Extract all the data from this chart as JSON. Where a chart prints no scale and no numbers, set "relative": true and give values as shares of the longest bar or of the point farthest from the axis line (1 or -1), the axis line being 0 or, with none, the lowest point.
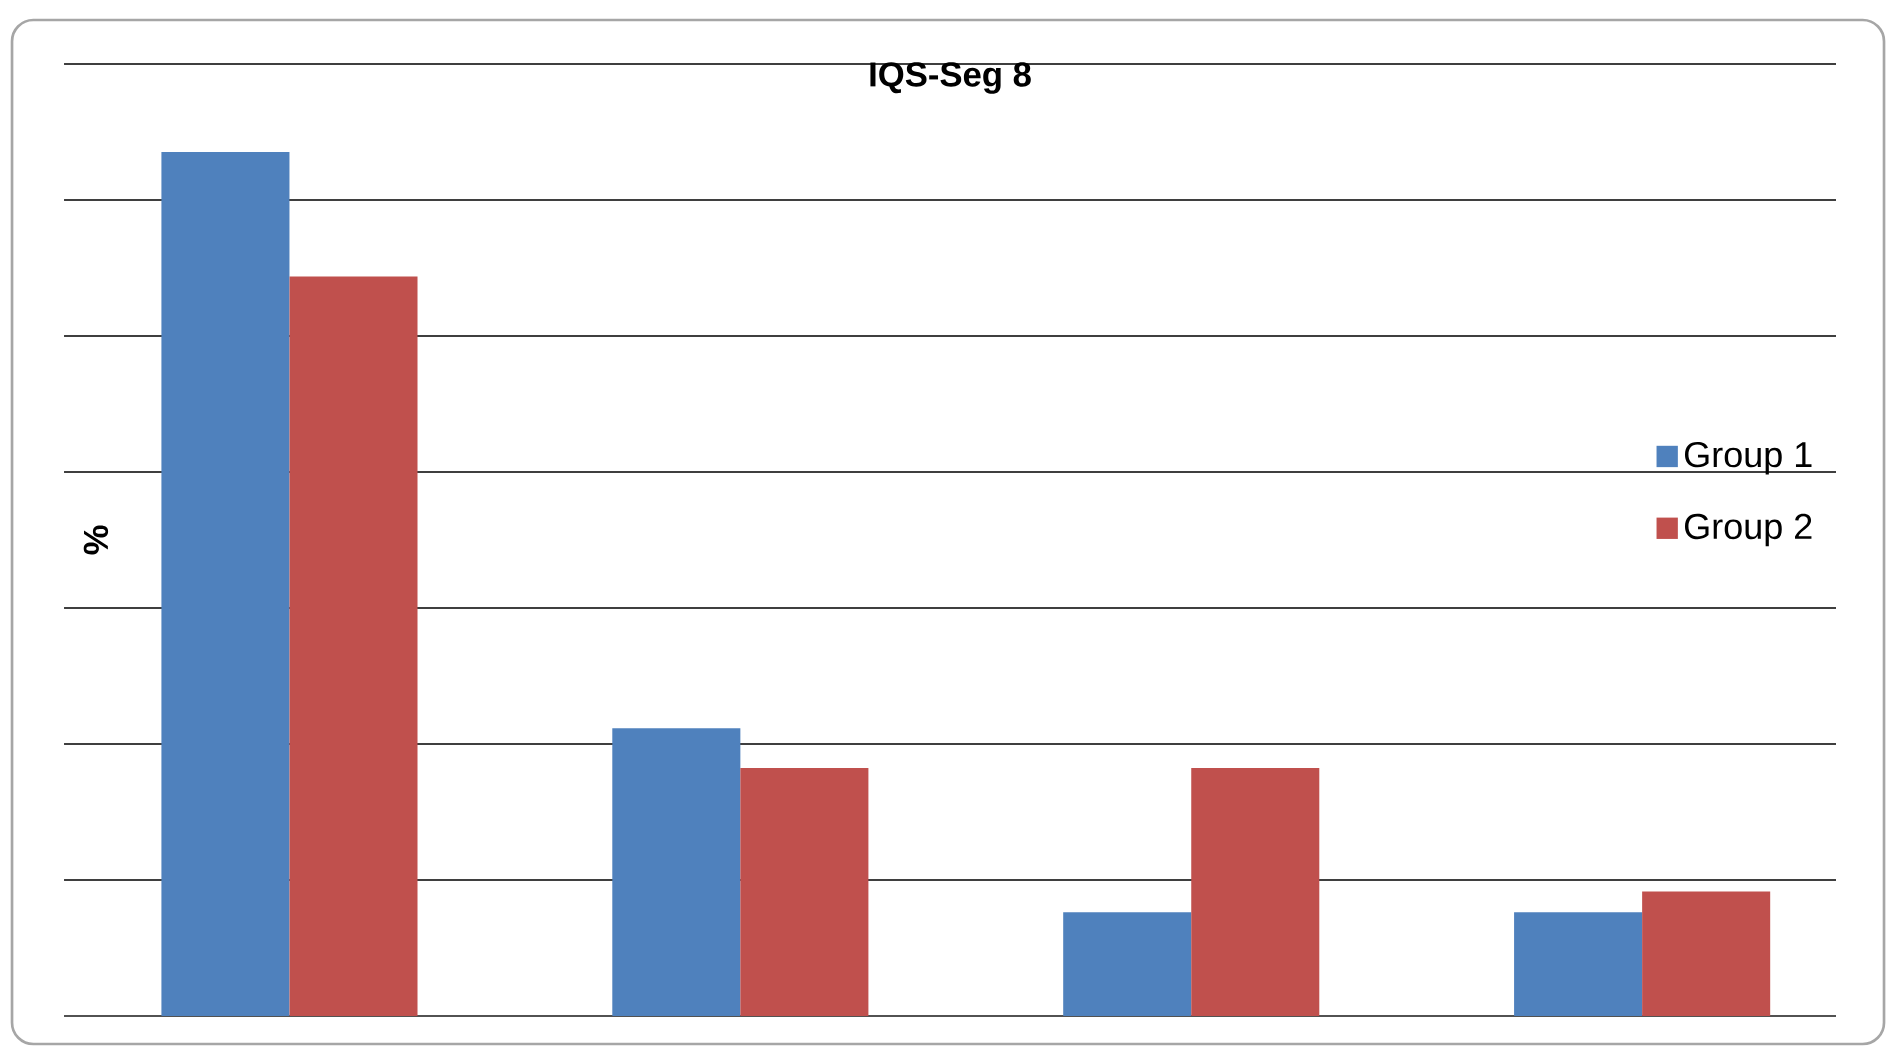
{
  "chart_data": {
    "type": "bar",
    "title": "IQS-Seg 8",
    "ylabel": "%",
    "relative": true,
    "categories": [
      null,
      null,
      null,
      null
    ],
    "series": [
      {
        "name": "Group 1",
        "color": "#4f81bd",
        "values": [
          1,
          0.333,
          0.12,
          0.12
        ]
      },
      {
        "name": "Group 2",
        "color": "#c0504d",
        "values": [
          0.856,
          0.287,
          0.287,
          0.144
        ]
      }
    ],
    "grid": "y",
    "legend": "right"
  }
}
